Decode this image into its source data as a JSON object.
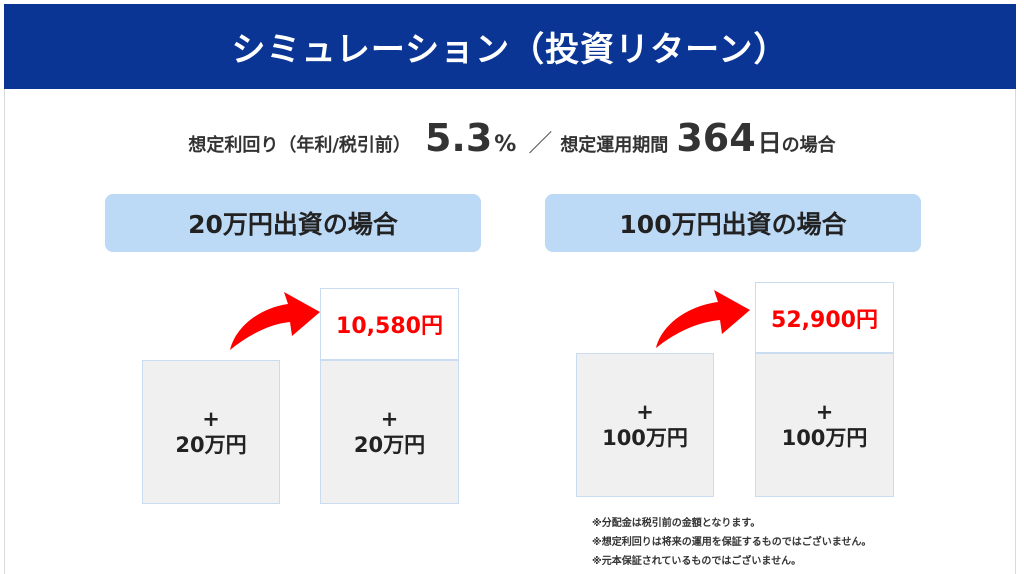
{
  "header": {
    "title": "シミュレーション（投資リターン）"
  },
  "summary": {
    "rate_label": "想定利回り（年利/税引前）",
    "rate_value": "5.3",
    "rate_unit": "%",
    "separator": "／",
    "period_label": "想定運用期間",
    "period_value": "364",
    "period_unit": "日",
    "period_suffix": "の場合"
  },
  "cases": [
    {
      "title": "20万円出資の場合",
      "principal_plus": "+",
      "principal_label": "20万円",
      "gain": "10,580円"
    },
    {
      "title": "100万円出資の場合",
      "principal_plus": "+",
      "principal_label": "100万円",
      "gain": "52,900円"
    }
  ],
  "notes": [
    "※分配金は税引前の金額となります。",
    "※想定利回りは将来の運用を保証するものではございません。",
    "※元本保証されているものではございません。"
  ],
  "colors": {
    "header_bg": "#0a3594",
    "pill_bg": "#bcd9f6",
    "gain_text": "#ff0000",
    "arrow": "#ff0000"
  }
}
